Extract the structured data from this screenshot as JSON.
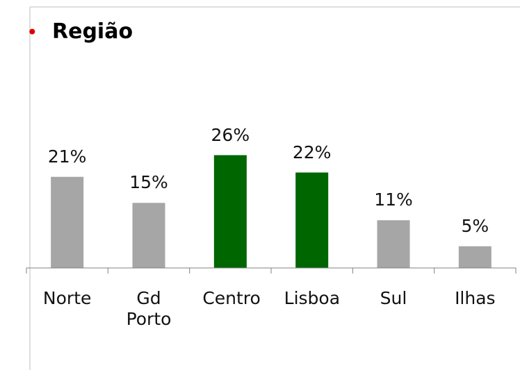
{
  "chart_data": {
    "type": "bar",
    "title": "Região",
    "categories": [
      "Norte",
      "Gd Porto",
      "Centro",
      "Lisboa",
      "Sul",
      "Ilhas"
    ],
    "values": [
      21,
      15,
      26,
      22,
      11,
      5
    ],
    "value_labels": [
      "21%",
      "15%",
      "26%",
      "22%",
      "11%",
      "5%"
    ],
    "colors": [
      "#a6a6a6",
      "#a6a6a6",
      "#006600",
      "#006600",
      "#a6a6a6",
      "#a6a6a6"
    ],
    "ylim": [
      0,
      30
    ]
  }
}
